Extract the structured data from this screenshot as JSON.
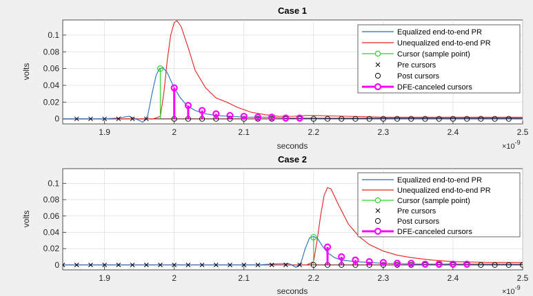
{
  "chart_data": [
    {
      "type": "line",
      "title": "Case 1",
      "xlabel": "seconds",
      "ylabel": "volts",
      "x_exponent": "×10",
      "x_exponent_power": "-9",
      "xlim": [
        1.84,
        2.5
      ],
      "ylim": [
        -0.006,
        0.118
      ],
      "xticks": [
        "1.9",
        "2",
        "2.1",
        "2.2",
        "2.3",
        "2.4",
        "2.5"
      ],
      "xtick_values": [
        1.9,
        2.0,
        2.1,
        2.2,
        2.3,
        2.4,
        2.5
      ],
      "yticks": [
        "0",
        "0.02",
        "0.04",
        "0.06",
        "0.08",
        "0.1"
      ],
      "ytick_values": [
        0,
        0.02,
        0.04,
        0.06,
        0.08,
        0.1
      ],
      "grid": true,
      "legend_placement": "top-right",
      "colors": {
        "equalized": "#1f6fbf",
        "unequalized": "#e3201b",
        "cursor": "#2bd22b",
        "dfe": "#ff00ff",
        "markers": "#000000"
      },
      "legend": [
        "Equalized end-to-end PR",
        "Unequalized end-to-end PR",
        "Cursor (sample point)",
        "Pre cursors",
        "Post cursors",
        "DFE-canceled cursors"
      ],
      "series": [
        {
          "name": "Equalized end-to-end PR",
          "x": [
            1.84,
            1.9,
            1.92,
            1.935,
            1.945,
            1.955,
            1.962,
            1.968,
            1.974,
            1.979,
            1.984,
            1.99,
            1.995,
            2.0,
            2.008,
            2.018,
            2.03,
            2.045,
            2.06,
            2.08,
            2.1,
            2.12,
            2.14,
            2.16,
            2.18,
            2.2,
            2.25,
            2.3,
            2.4,
            2.5
          ],
          "y": [
            0,
            0,
            0.001,
            0.003,
            0.0,
            -0.004,
            0.004,
            0.03,
            0.052,
            0.06,
            0.061,
            0.055,
            0.046,
            0.037,
            0.026,
            0.016,
            0.01,
            0.006,
            0.004,
            0.003,
            0.002,
            0.002,
            0.002,
            0.001,
            0.001,
            0.001,
            0.001,
            0.001,
            0.001,
            0.001
          ]
        },
        {
          "name": "Unequalized end-to-end PR",
          "x": [
            1.84,
            1.97,
            1.98,
            1.985,
            1.99,
            1.995,
            2.0,
            2.004,
            2.01,
            2.02,
            2.03,
            2.045,
            2.06,
            2.075,
            2.09,
            2.11,
            2.13,
            2.15,
            2.17,
            2.19,
            2.2,
            2.25,
            2.3,
            2.4,
            2.5
          ],
          "y": [
            0,
            0,
            0.003,
            0.03,
            0.07,
            0.1,
            0.115,
            0.117,
            0.11,
            0.085,
            0.058,
            0.037,
            0.025,
            0.02,
            0.014,
            0.008,
            0.005,
            0.003,
            0.003,
            0.004,
            0.004,
            0.003,
            0.002,
            0.002,
            0.002
          ]
        }
      ],
      "cursor": {
        "name": "Cursor (sample point)",
        "x": 1.98,
        "y": 0.06
      },
      "pre_cursors": {
        "name": "Pre cursors",
        "x": [
          1.86,
          1.88,
          1.9,
          1.92,
          1.94,
          1.96
        ],
        "y": [
          0,
          0,
          0,
          0,
          0,
          0
        ]
      },
      "post_cursors": {
        "name": "Post cursors",
        "x": [
          2.0,
          2.02,
          2.04,
          2.06,
          2.08,
          2.1,
          2.12,
          2.14,
          2.16,
          2.18,
          2.2,
          2.22,
          2.24,
          2.26,
          2.28,
          2.3,
          2.32,
          2.34,
          2.36,
          2.38,
          2.4,
          2.42,
          2.44,
          2.46,
          2.48
        ],
        "y": [
          0,
          0,
          0,
          0,
          0,
          0,
          0,
          0,
          0,
          0,
          0,
          0,
          0,
          0,
          0,
          0,
          0,
          0,
          0,
          0,
          0,
          0,
          0,
          0,
          0
        ]
      },
      "dfe_cursors": {
        "name": "DFE-canceled cursors",
        "x": [
          2.0,
          2.02,
          2.04,
          2.06,
          2.08,
          2.1,
          2.12,
          2.14,
          2.16,
          2.18
        ],
        "y": [
          0.037,
          0.016,
          0.01,
          0.006,
          0.004,
          0.003,
          0.002,
          0.002,
          0.001,
          0.001
        ]
      }
    },
    {
      "type": "line",
      "title": "Case 2",
      "xlabel": "seconds",
      "ylabel": "volts",
      "x_exponent": "×10",
      "x_exponent_power": "-9",
      "xlim": [
        1.84,
        2.5
      ],
      "ylim": [
        -0.006,
        0.118
      ],
      "xticks": [
        "1.9",
        "2",
        "2.1",
        "2.2",
        "2.3",
        "2.4",
        "2.5"
      ],
      "xtick_values": [
        1.9,
        2.0,
        2.1,
        2.2,
        2.3,
        2.4,
        2.5
      ],
      "yticks": [
        "0",
        "0.02",
        "0.04",
        "0.06",
        "0.08",
        "0.1"
      ],
      "ytick_values": [
        0,
        0.02,
        0.04,
        0.06,
        0.08,
        0.1
      ],
      "grid": true,
      "legend_placement": "top-right",
      "colors": {
        "equalized": "#1f6fbf",
        "unequalized": "#e3201b",
        "cursor": "#2bd22b",
        "dfe": "#ff00ff",
        "markers": "#000000"
      },
      "legend": [
        "Equalized end-to-end PR",
        "Unequalized end-to-end PR",
        "Cursor (sample point)",
        "Pre cursors",
        "Post cursors",
        "DFE-canceled cursors"
      ],
      "series": [
        {
          "name": "Equalized end-to-end PR",
          "x": [
            1.84,
            2.12,
            2.15,
            2.165,
            2.175,
            2.182,
            2.188,
            2.194,
            2.2,
            2.206,
            2.212,
            2.22,
            2.23,
            2.24,
            2.26,
            2.28,
            2.3,
            2.35,
            2.4,
            2.5
          ],
          "y": [
            0,
            0,
            0.0015,
            0.0015,
            -0.003,
            0.003,
            0.02,
            0.033,
            0.035,
            0.032,
            0.024,
            0.015,
            0.009,
            0.006,
            0.004,
            0.003,
            0.002,
            0.001,
            0.001,
            0.001
          ]
        },
        {
          "name": "Unequalized end-to-end PR",
          "x": [
            1.84,
            2.19,
            2.2,
            2.205,
            2.21,
            2.215,
            2.22,
            2.225,
            2.235,
            2.25,
            2.265,
            2.28,
            2.3,
            2.32,
            2.34,
            2.37,
            2.4,
            2.45,
            2.5
          ],
          "y": [
            0,
            0,
            0.004,
            0.03,
            0.06,
            0.085,
            0.095,
            0.093,
            0.075,
            0.05,
            0.035,
            0.025,
            0.017,
            0.012,
            0.009,
            0.006,
            0.004,
            0.003,
            0.003
          ]
        }
      ],
      "cursor": {
        "name": "Cursor (sample point)",
        "x": 2.2,
        "y": 0.034
      },
      "pre_cursors": {
        "name": "Pre cursors",
        "x": [
          1.84,
          1.86,
          1.88,
          1.9,
          1.92,
          1.94,
          1.96,
          1.98,
          2.0,
          2.02,
          2.04,
          2.06,
          2.08,
          2.1,
          2.12,
          2.14,
          2.16,
          2.18
        ],
        "y": [
          0,
          0,
          0,
          0,
          0,
          0,
          0,
          0,
          0,
          0,
          0,
          0,
          0,
          0,
          0,
          0,
          0,
          0
        ]
      },
      "post_cursors": {
        "name": "Post cursors",
        "x": [
          2.2,
          2.22,
          2.24,
          2.26,
          2.28,
          2.3,
          2.32,
          2.34,
          2.36,
          2.38,
          2.4,
          2.42,
          2.44,
          2.46,
          2.48,
          2.5
        ],
        "y": [
          0,
          0,
          0,
          0,
          0,
          0,
          0,
          0,
          0,
          0,
          0,
          0,
          0,
          0,
          0,
          0
        ]
      },
      "dfe_cursors": {
        "name": "DFE-canceled cursors",
        "x": [
          2.22,
          2.24,
          2.26,
          2.28,
          2.3,
          2.32,
          2.34,
          2.36,
          2.38,
          2.4,
          2.42
        ],
        "y": [
          0.022,
          0.01,
          0.006,
          0.004,
          0.003,
          0.002,
          0.002,
          0.001,
          0.001,
          0.001,
          0.001
        ]
      }
    }
  ]
}
